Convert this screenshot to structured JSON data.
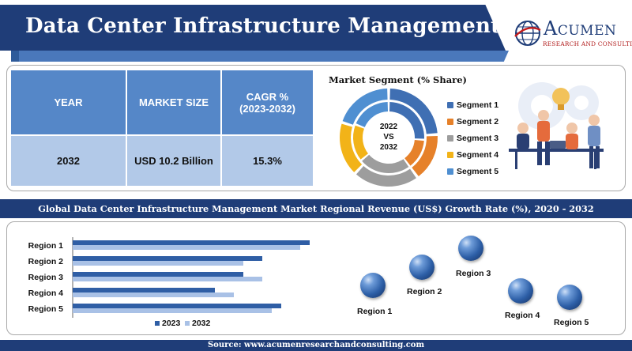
{
  "header": {
    "title": "Data Center Infrastructure Management Market",
    "logo_name": "Acumen",
    "logo_sub": "RESEARCH AND CONSULTING"
  },
  "table": {
    "headers": [
      "YEAR",
      "MARKET SIZE",
      "CAGR %"
    ],
    "cagr_period": "(2023-2032)",
    "row": [
      "2032",
      "USD 10.2 Billion",
      "15.3%"
    ]
  },
  "segment": {
    "title": "Market Segment (% Share)",
    "center_line1": "2022",
    "center_line2": "VS",
    "center_line3": "2032",
    "items": [
      {
        "label": "Segment 1",
        "color": "#3f6fb3"
      },
      {
        "label": "Segment 2",
        "color": "#e6812a"
      },
      {
        "label": "Segment 3",
        "color": "#9d9d9d"
      },
      {
        "label": "Segment 4",
        "color": "#f2b318"
      },
      {
        "label": "Segment 5",
        "color": "#4f8fd1"
      }
    ],
    "outer_shares": [
      24,
      16,
      22,
      18,
      20
    ],
    "inner_shares": [
      26,
      14,
      24,
      17,
      19
    ]
  },
  "banner": {
    "text": "Global Data Center Infrastructure Management Market Regional Revenue (US$) Growth Rate (%), 2020 - 2032"
  },
  "chart_data": {
    "type": "bar",
    "orientation": "horizontal",
    "categories": [
      "Region 1",
      "Region 2",
      "Region 3",
      "Region 4",
      "Region 5"
    ],
    "series": [
      {
        "name": "2023",
        "values": [
          100,
          80,
          72,
          60,
          88
        ],
        "color": "#2f5ea5"
      },
      {
        "name": "2032",
        "values": [
          96,
          72,
          80,
          68,
          84
        ],
        "color": "#a9c1e6"
      }
    ],
    "xlim": [
      0,
      100
    ],
    "legend": "bottom",
    "grid": false
  },
  "regions": [
    {
      "label": "Region 1"
    },
    {
      "label": "Region 2"
    },
    {
      "label": "Region 3"
    },
    {
      "label": "Region 4"
    },
    {
      "label": "Region 5"
    }
  ],
  "footer": {
    "text": "Source: www.acumenresearchandconsulting.com"
  }
}
